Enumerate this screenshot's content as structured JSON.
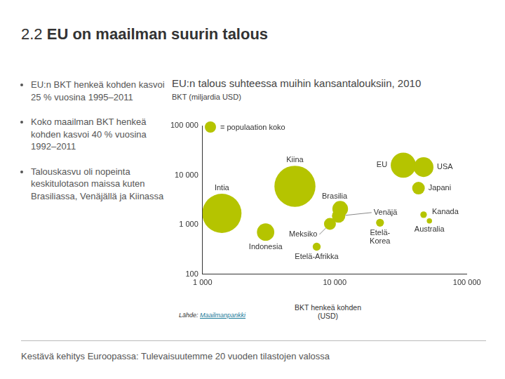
{
  "header": {
    "title": "2.2 EU on maailman suurin talous"
  },
  "bullets": [
    "EU:n BKT henkeä kohden kasvoi 25 % vuosina 1995–2011",
    "Koko maailman BKT henkeä kohden kasvoi 40 % vuosina 1992–2011",
    "Talouskasvu oli nopeinta keskitulotason maissa kuten Brasiliassa, Venäjällä ja Kiinassa"
  ],
  "chart_data": {
    "type": "bubble",
    "title": "EU:n talous suhteessa muihin kansantalouksiin, 2010",
    "y_label": "BKT (miljardia USD)",
    "x_label": "BKT henkeä kohden (USD)",
    "size_label": "= populaation koko",
    "log": true,
    "grid": false,
    "color": "#b5c400",
    "xlim": [
      1000,
      100000
    ],
    "ylim": [
      100,
      100000
    ],
    "xticks": [
      {
        "value": 1000,
        "label": "1 000"
      },
      {
        "value": 10000,
        "label": "10 000"
      },
      {
        "value": 100000,
        "label": "100 000"
      }
    ],
    "yticks": [
      100,
      {
        "value": 1000,
        "label": "1 000"
      },
      {
        "value": 10000,
        "label": "10 000"
      },
      {
        "value": 100000,
        "label": "100 000"
      }
    ],
    "labels": [
      "Kiina",
      "EU",
      "USA",
      "Intia",
      "Japani",
      "Brasilia",
      "Venäjä",
      "Meksiko",
      "Indonesia",
      "Etelä-Afrikka",
      "Etelä-Korea",
      "Kanada",
      "Australia"
    ],
    "x": [
      5000,
      33000,
      47000,
      1400,
      43000,
      11000,
      10700,
      9200,
      3000,
      7300,
      22000,
      47000,
      52000
    ],
    "y": [
      6000,
      16000,
      14600,
      1700,
      5500,
      2100,
      1500,
      1040,
      710,
      360,
      1100,
      1600,
      1200
    ],
    "population": [
      1338,
      501,
      309,
      1225,
      127,
      195,
      142,
      113,
      240,
      50,
      49,
      34,
      22
    ]
  },
  "source": {
    "text": "Lähde:",
    "link": "Maailmanpankki"
  },
  "footer": "Kestävä kehitys Euroopassa: Tulevaisuutemme 20 vuoden tilastojen valossa"
}
